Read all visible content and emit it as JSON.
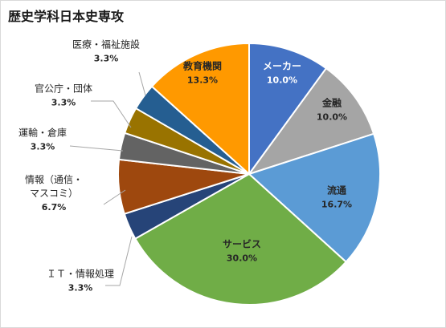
{
  "chart_data": {
    "type": "pie",
    "title": "歴史学科日本史専攻",
    "start_angle_deg": 0,
    "direction": "clockwise",
    "data_labels": "category name and percentage",
    "legend": "none",
    "slices": [
      {
        "label": "メーカー",
        "value": 10.0,
        "display": "10.0%",
        "color": "#4472C4",
        "label_color": "#ffffff",
        "label_lines": [
          "メーカー"
        ]
      },
      {
        "label": "金融",
        "value": 10.0,
        "display": "10.0%",
        "color": "#A5A5A5",
        "label_color": "#262626",
        "label_lines": [
          "金融"
        ]
      },
      {
        "label": "流通",
        "value": 16.7,
        "display": "16.7%",
        "color": "#5B9BD5",
        "label_color": "#262626",
        "label_lines": [
          "流通"
        ]
      },
      {
        "label": "サービス",
        "value": 30.0,
        "display": "30.0%",
        "color": "#70AD47",
        "label_color": "#262626",
        "label_lines": [
          "サービス"
        ]
      },
      {
        "label": "ＩＴ・情報処理",
        "value": 3.3,
        "display": "3.3%",
        "color": "#264478",
        "label_color": "#262626",
        "label_lines": [
          "ＩＴ・情報処理"
        ]
      },
      {
        "label": "情報（通信・マスコミ）",
        "value": 6.7,
        "display": "6.7%",
        "color": "#9E480E",
        "label_color": "#262626",
        "label_lines": [
          "情報（通信・",
          "マスコミ）"
        ]
      },
      {
        "label": "運輸・倉庫",
        "value": 3.3,
        "display": "3.3%",
        "color": "#636363",
        "label_color": "#262626",
        "label_lines": [
          "運輸・倉庫"
        ]
      },
      {
        "label": "官公庁・団体",
        "value": 3.3,
        "display": "3.3%",
        "color": "#997300",
        "label_color": "#262626",
        "label_lines": [
          "官公庁・団体"
        ]
      },
      {
        "label": "医療・福祉施設",
        "value": 3.3,
        "display": "3.3%",
        "color": "#255E91",
        "label_color": "#262626",
        "label_lines": [
          "医療・福祉施設"
        ]
      },
      {
        "label": "教育機関",
        "value": 13.3,
        "display": "13.3%",
        "color": "#FF9900",
        "label_color": "#262626",
        "label_lines": [
          "教育機関"
        ]
      }
    ]
  }
}
